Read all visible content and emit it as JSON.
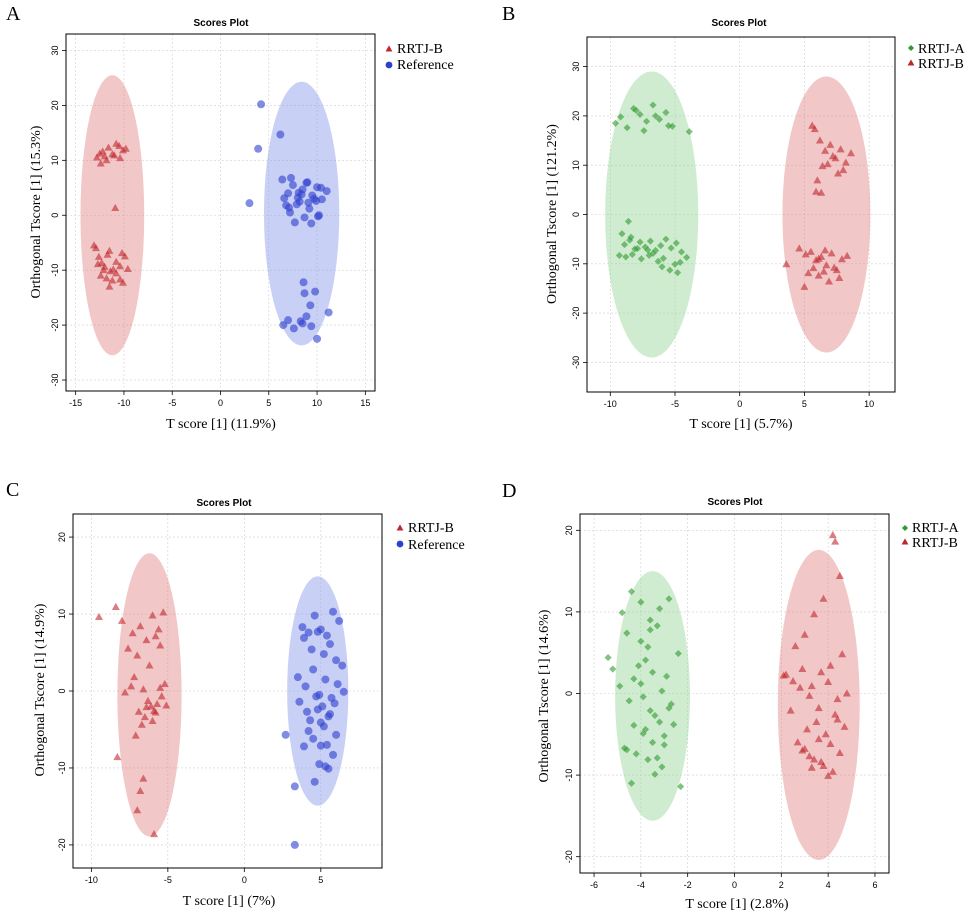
{
  "colors": {
    "red_marker": "#c0272d",
    "red_ellipse": "#e07a7a",
    "blue_marker": "#2d3fcf",
    "blue_ellipse": "#7f8ee6",
    "green_marker": "#2f9a2f",
    "green_ellipse": "#8ed18e"
  },
  "chart_data": [
    {
      "panel": "A",
      "type": "scatter",
      "title": "Scores Plot",
      "xlabel": "T score [1] (11.9%)",
      "ylabel": "Orthogonal Tscore [1] (15.3%)",
      "xlim": [
        -16,
        16
      ],
      "ylim": [
        -32,
        33
      ],
      "xticks": [
        -15,
        -10,
        -5,
        0,
        5,
        10,
        15
      ],
      "yticks": [
        -30,
        -20,
        -10,
        0,
        10,
        20,
        30
      ],
      "grid": true,
      "legend_position": "top-right",
      "series": [
        {
          "name": "RRTJ-B",
          "marker": "triangle",
          "color": "#c0272d",
          "ellipse_color": "#e07a7a",
          "ellipse": {
            "cx": -11.2,
            "cy": 0,
            "rx": 3.3,
            "ry": 25.5
          },
          "x": [
            -12.8,
            -12.5,
            -12.2,
            -12.0,
            -11.6,
            -11.2,
            -10.8,
            -10.4,
            -10.1,
            -9.8,
            -12.4,
            -11.8,
            -11.0,
            -10.5,
            -10.9,
            -11.5,
            -10.2,
            -9.9,
            -12.9,
            -12.6,
            -12.3,
            -12.0,
            -11.7,
            -11.4,
            -11.1,
            -10.8,
            -10.4,
            -10.1,
            -12.7,
            -12.4,
            -12.1,
            -11.8,
            -11.5,
            -11.2,
            -10.8,
            -10.4,
            -9.6,
            -13.1
          ],
          "y": [
            10.5,
            11.2,
            11.6,
            10.7,
            12.3,
            11.1,
            13.0,
            10.4,
            11.8,
            12.1,
            9.4,
            10.0,
            10.9,
            12.6,
            1.3,
            -6.5,
            -6.9,
            -7.5,
            -6.0,
            -7.6,
            -8.7,
            -9.4,
            -7.2,
            -10.2,
            -9.9,
            -10.6,
            -11.7,
            -12.3,
            -8.9,
            -11.0,
            -10.0,
            -11.5,
            -13.0,
            -11.9,
            -8.5,
            -9.3,
            -9.8,
            -5.5
          ]
        },
        {
          "name": "Reference",
          "marker": "circle",
          "color": "#2d3fcf",
          "ellipse_color": "#7f8ee6",
          "ellipse": {
            "cx": 8.4,
            "cy": 0.3,
            "rx": 3.9,
            "ry": 24.0
          },
          "x": [
            4.2,
            6.2,
            3.9,
            3.0,
            6.4,
            7.0,
            7.5,
            8.0,
            8.5,
            9.0,
            9.5,
            10.0,
            10.5,
            11.0,
            6.8,
            7.2,
            7.7,
            8.2,
            8.7,
            9.2,
            9.7,
            10.2,
            7.3,
            7.9,
            8.4,
            8.9,
            9.4,
            9.9,
            10.4,
            6.6,
            7.1,
            8.1,
            9.1,
            10.1,
            8.6,
            9.3,
            8.7,
            8.3,
            6.5,
            7.0,
            7.6,
            8.5,
            9.4,
            10.0,
            11.2,
            9.8,
            8.9
          ],
          "y": [
            20.2,
            14.7,
            12.1,
            2.2,
            6.5,
            4.0,
            5.5,
            3.2,
            4.7,
            6.0,
            3.6,
            5.1,
            2.9,
            4.4,
            1.8,
            0.5,
            -1.3,
            2.5,
            -0.4,
            1.2,
            3.0,
            0.0,
            6.8,
            2.0,
            3.8,
            5.9,
            -1.5,
            2.6,
            5.0,
            3.1,
            1.4,
            4.1,
            2.3,
            -0.2,
            -12.2,
            -16.4,
            -14.2,
            -19.3,
            -20.0,
            -19.1,
            -20.6,
            -19.7,
            -20.2,
            -22.5,
            -17.7,
            -13.9,
            -18.4
          ]
        }
      ]
    },
    {
      "panel": "B",
      "type": "scatter",
      "title": "Scores Plot",
      "xlabel": "T score [1] (5.7%)",
      "ylabel": "Orthogonal Tscore [1] (121.2%)",
      "xlim": [
        -11.8,
        12.0
      ],
      "ylim": [
        -36,
        36
      ],
      "xticks": [
        -10,
        -5,
        0,
        5,
        10
      ],
      "yticks": [
        -30,
        -20,
        -10,
        0,
        10,
        20,
        30
      ],
      "grid": true,
      "legend_position": "top-right",
      "series": [
        {
          "name": "RRTJ-A",
          "marker": "diamond",
          "color": "#2f9a2f",
          "ellipse_color": "#8ed18e",
          "ellipse": {
            "cx": -6.8,
            "cy": 0,
            "rx": 3.6,
            "ry": 29.0
          },
          "x": [
            -9.6,
            -9.2,
            -8.7,
            -8.2,
            -7.7,
            -7.2,
            -6.7,
            -6.2,
            -5.7,
            -5.2,
            -3.9,
            -8.0,
            -7.4,
            -6.5,
            -5.5,
            -8.6,
            -9.1,
            -8.9,
            -8.5,
            -8.1,
            -7.7,
            -7.3,
            -6.9,
            -6.5,
            -6.1,
            -5.7,
            -5.3,
            -4.9,
            -4.5,
            -4.1,
            -8.8,
            -8.3,
            -7.6,
            -7.0,
            -6.3,
            -5.9,
            -5.0,
            -4.6,
            -7.9,
            -6.7,
            -5.4,
            -9.3,
            -8.4,
            -7.1,
            -6.0,
            -4.8
          ],
          "y": [
            18.5,
            19.8,
            17.6,
            21.5,
            20.3,
            18.9,
            22.2,
            19.3,
            20.7,
            17.9,
            16.8,
            21.1,
            17.0,
            20.0,
            18.0,
            -1.4,
            -3.9,
            -6.1,
            -5.2,
            -7.0,
            -5.6,
            -6.6,
            -5.4,
            -7.3,
            -6.3,
            -5.0,
            -6.8,
            -5.8,
            -7.6,
            -8.7,
            -8.6,
            -8.1,
            -9.0,
            -8.3,
            -9.5,
            -8.9,
            -10.1,
            -9.7,
            -6.9,
            -7.9,
            -11.3,
            -8.3,
            -4.6,
            -7.2,
            -10.6,
            -11.8
          ]
        },
        {
          "name": "RRTJ-B",
          "marker": "triangle",
          "color": "#c0272d",
          "ellipse_color": "#e07a7a",
          "ellipse": {
            "cx": 6.7,
            "cy": 0,
            "rx": 3.4,
            "ry": 28.0
          },
          "x": [
            5.8,
            6.2,
            6.6,
            7.0,
            7.4,
            7.8,
            8.2,
            8.6,
            5.6,
            6.4,
            7.2,
            8.0,
            6.8,
            7.6,
            5.9,
            6.3,
            6.0,
            4.6,
            5.1,
            5.5,
            5.9,
            6.3,
            6.7,
            7.1,
            7.5,
            7.9,
            8.3,
            5.3,
            5.7,
            6.1,
            6.5,
            6.9,
            7.3,
            7.7,
            3.6,
            5.0,
            6.1,
            6.6
          ],
          "y": [
            17.3,
            15.0,
            12.9,
            14.1,
            11.4,
            13.2,
            10.5,
            12.4,
            18.0,
            9.8,
            11.8,
            9.0,
            10.2,
            8.3,
            4.6,
            4.4,
            6.9,
            -6.9,
            -8.1,
            -7.6,
            -9.3,
            -8.6,
            -10.3,
            -7.9,
            -11.3,
            -9.1,
            -8.4,
            -11.9,
            -10.9,
            -12.4,
            -11.6,
            -13.6,
            -10.8,
            -12.9,
            -10.1,
            -14.7,
            -9.0,
            -7.3
          ]
        }
      ]
    },
    {
      "panel": "C",
      "type": "scatter",
      "title": "Scores Plot",
      "xlabel": "T score [1] (7%)",
      "ylabel": "Orthogonal Tscore [1] (14.9%)",
      "xlim": [
        -11.2,
        9.0
      ],
      "ylim": [
        -23,
        23
      ],
      "xticks": [
        -10,
        -5,
        0,
        5
      ],
      "yticks": [
        -20,
        -10,
        0,
        10,
        20
      ],
      "grid": true,
      "legend_position": "top-right",
      "series": [
        {
          "name": "RRTJ-B",
          "marker": "triangle",
          "color": "#c0272d",
          "ellipse_color": "#e07a7a",
          "ellipse": {
            "cx": -6.2,
            "cy": -0.5,
            "rx": 2.1,
            "ry": 18.4
          },
          "x": [
            -9.5,
            -8.4,
            -8.0,
            -7.3,
            -6.8,
            -6.4,
            -6.0,
            -5.6,
            -5.3,
            -7.6,
            -7.0,
            -6.2,
            -5.8,
            -5.5,
            -5.2,
            -7.8,
            -7.2,
            -6.6,
            -6.3,
            -6.1,
            -5.9,
            -5.7,
            -7.4,
            -6.9,
            -6.5,
            -5.4,
            -5.1,
            -8.3,
            -7.1,
            -6.7,
            -6.4,
            -6.0,
            -5.8,
            -5.5,
            -6.6,
            -7.0,
            -6.8,
            -5.9
          ],
          "y": [
            9.6,
            10.9,
            9.1,
            7.5,
            8.4,
            6.6,
            9.8,
            8.0,
            10.2,
            5.5,
            4.6,
            3.3,
            7.1,
            5.9,
            0.9,
            -0.2,
            1.8,
            0.2,
            -1.3,
            -2.0,
            -2.6,
            -1.7,
            0.6,
            -2.7,
            -3.4,
            -0.7,
            -1.9,
            -8.6,
            -5.8,
            -4.4,
            -2.1,
            -3.9,
            -2.8,
            0.4,
            -11.4,
            -15.5,
            -13.0,
            -18.6
          ]
        },
        {
          "name": "Reference",
          "marker": "circle",
          "color": "#2d3fcf",
          "ellipse_color": "#7f8ee6",
          "ellipse": {
            "cx": 4.8,
            "cy": 0,
            "rx": 2.0,
            "ry": 14.9
          },
          "x": [
            3.3,
            3.8,
            4.2,
            4.6,
            5.0,
            5.4,
            5.8,
            6.2,
            3.9,
            4.4,
            4.8,
            5.2,
            5.6,
            6.0,
            6.4,
            3.5,
            4.0,
            4.5,
            4.9,
            5.3,
            5.7,
            6.1,
            6.5,
            3.6,
            4.1,
            4.7,
            5.1,
            5.5,
            5.9,
            4.3,
            4.8,
            5.2,
            5.6,
            6.0,
            4.5,
            5.0,
            5.4,
            5.8,
            4.2,
            4.9,
            5.5,
            3.9,
            4.6,
            5.3,
            2.7,
            3.3,
            5.0
          ],
          "y": [
            -20.0,
            8.3,
            7.6,
            9.8,
            8.0,
            7.2,
            10.3,
            9.1,
            6.9,
            5.4,
            7.7,
            4.8,
            6.1,
            4.0,
            3.3,
            1.8,
            0.6,
            2.8,
            -0.5,
            1.5,
            -0.9,
            0.9,
            -0.1,
            -1.4,
            -2.7,
            -0.7,
            -2.0,
            -3.3,
            -1.6,
            -3.8,
            -2.4,
            -4.6,
            -3.0,
            -5.7,
            -6.2,
            -4.1,
            -7.0,
            -8.3,
            -5.2,
            -9.5,
            -10.1,
            -7.2,
            -11.8,
            -9.8,
            -5.7,
            -12.4,
            -7.1
          ]
        }
      ]
    },
    {
      "panel": "D",
      "type": "scatter",
      "title": "Scores Plot",
      "xlabel": "T score [1] (2.8%)",
      "ylabel": "Orthogonal Tscore [1] (14.6%)",
      "xlim": [
        -6.6,
        6.6
      ],
      "ylim": [
        -22,
        22
      ],
      "xticks": [
        -6,
        -4,
        -2,
        0,
        2,
        4,
        6
      ],
      "yticks": [
        -20,
        -10,
        0,
        10,
        20
      ],
      "grid": true,
      "legend_position": "top-right",
      "series": [
        {
          "name": "RRTJ-A",
          "marker": "diamond",
          "color": "#2f9a2f",
          "ellipse_color": "#8ed18e",
          "ellipse": {
            "cx": -3.5,
            "cy": -0.3,
            "rx": 1.6,
            "ry": 15.3
          },
          "x": [
            -5.4,
            -5.2,
            -4.8,
            -4.4,
            -4.0,
            -3.6,
            -3.2,
            -2.8,
            -2.4,
            -4.6,
            -4.1,
            -3.7,
            -3.3,
            -2.9,
            -4.9,
            -4.3,
            -3.9,
            -3.5,
            -3.1,
            -2.7,
            -4.5,
            -4.0,
            -3.6,
            -3.2,
            -3.8,
            -3.4,
            -3.0,
            -4.7,
            -4.2,
            -3.9,
            -3.5,
            -2.6,
            -3.3,
            -4.4,
            -4.6,
            -3.7,
            -3.1,
            -2.3,
            -3.8,
            -4.0,
            -3.6,
            -2.8,
            -4.3,
            -3.0,
            -3.4
          ],
          "y": [
            4.4,
            3.0,
            9.9,
            12.5,
            11.2,
            9.0,
            10.4,
            11.6,
            4.9,
            7.4,
            3.4,
            5.7,
            8.3,
            2.1,
            0.9,
            1.8,
            -0.4,
            2.6,
            0.3,
            -1.3,
            -0.9,
            1.2,
            -2.1,
            -3.5,
            -4.4,
            -2.7,
            -5.2,
            -6.7,
            -7.4,
            -4.9,
            -6.0,
            -3.8,
            -7.9,
            -11.0,
            -6.9,
            -8.1,
            -9.0,
            -11.4,
            4.1,
            6.4,
            7.8,
            -1.8,
            -3.9,
            -6.3,
            -9.9
          ]
        },
        {
          "name": "RRTJ-B",
          "marker": "triangle",
          "color": "#c0272d",
          "ellipse_color": "#e07a7a",
          "ellipse": {
            "cx": 3.6,
            "cy": -1.4,
            "rx": 1.75,
            "ry": 19.0
          },
          "x": [
            4.2,
            4.3,
            4.5,
            3.8,
            3.4,
            3.0,
            2.6,
            2.2,
            4.6,
            4.8,
            4.1,
            3.7,
            3.3,
            2.9,
            2.5,
            4.4,
            4.0,
            3.6,
            3.2,
            2.8,
            2.4,
            4.7,
            4.3,
            3.9,
            3.5,
            3.1,
            2.7,
            4.5,
            4.1,
            3.7,
            3.3,
            2.9,
            4.2,
            3.8,
            3.4,
            4.0,
            3.6,
            3.2,
            4.4,
            3.0,
            2.1
          ],
          "y": [
            19.4,
            18.6,
            14.4,
            11.6,
            9.7,
            7.2,
            5.8,
            2.3,
            4.8,
            0.0,
            3.4,
            2.6,
            0.9,
            3.0,
            1.5,
            -0.7,
            1.4,
            -1.8,
            -0.3,
            0.7,
            -2.1,
            -4.1,
            -2.6,
            -5.0,
            -3.5,
            -4.4,
            -6.0,
            -7.3,
            -6.2,
            -8.4,
            -9.1,
            -7.0,
            -9.6,
            -8.9,
            -8.1,
            -10.1,
            -5.6,
            -7.7,
            -3.2,
            -6.8,
            2.2
          ]
        }
      ]
    }
  ]
}
